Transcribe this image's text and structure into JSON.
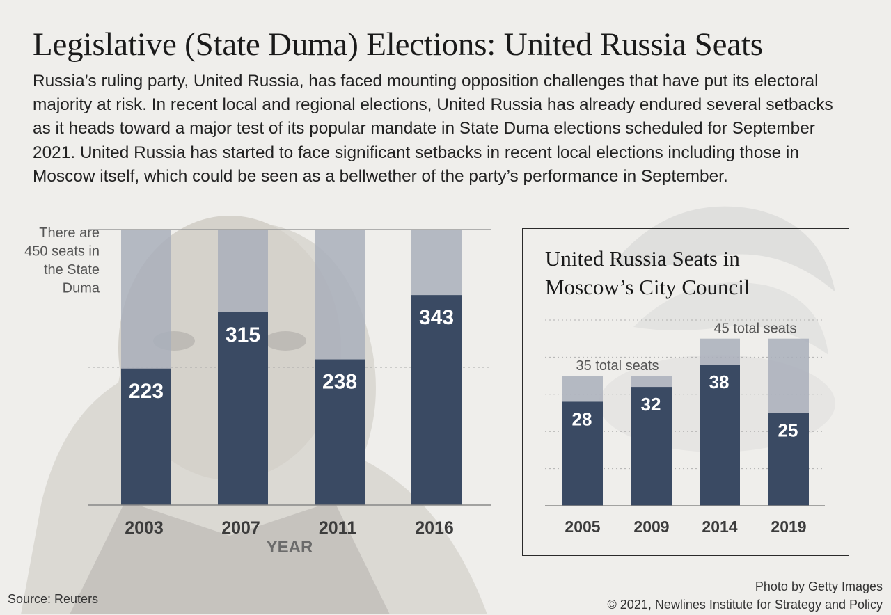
{
  "title": "Legislative (State Duma) Elections: United Russia Seats",
  "intro": "Russia’s ruling party, United Russia, has faced mounting opposition challenges that have put its electoral majority at risk. In recent local and regional elections, United Russia has already endured several setbacks as it heads toward a major test of its popular mandate in State Duma elections scheduled for September 2021. United Russia has started to face significant setbacks in recent local elections including those in Moscow itself, which could be seen as a bellwether of the party’s performance in September.",
  "source": "Source: Reuters",
  "credit": {
    "photo": "Photo by Getty Images",
    "copyright": "© 2021, Newlines Institute for Strategy and Policy"
  },
  "colors": {
    "seats_won": "#3a4a63",
    "total_seats": "#a9afbb",
    "background": "#efeeeb"
  },
  "chart_data": [
    {
      "type": "bar",
      "title": "",
      "categories": [
        "2003",
        "2007",
        "2011",
        "2016"
      ],
      "values": [
        223,
        315,
        238,
        343
      ],
      "total": 450,
      "xlabel": "YEAR",
      "ylabel": "",
      "ylim": [
        0,
        450
      ],
      "annotation": [
        "There are",
        "450 seats in",
        "the State",
        "Duma"
      ],
      "grid": true
    },
    {
      "type": "bar",
      "title": [
        "United Russia Seats in",
        "Moscow’s City Council"
      ],
      "categories": [
        "2005",
        "2009",
        "2014",
        "2019"
      ],
      "values": [
        28,
        32,
        38,
        25
      ],
      "totals": [
        35,
        35,
        45,
        45
      ],
      "total_labels": [
        "35 total seats",
        "45 total seats"
      ],
      "xlabel": "",
      "ylabel": "",
      "ylim": [
        0,
        50
      ],
      "grid": true
    }
  ]
}
